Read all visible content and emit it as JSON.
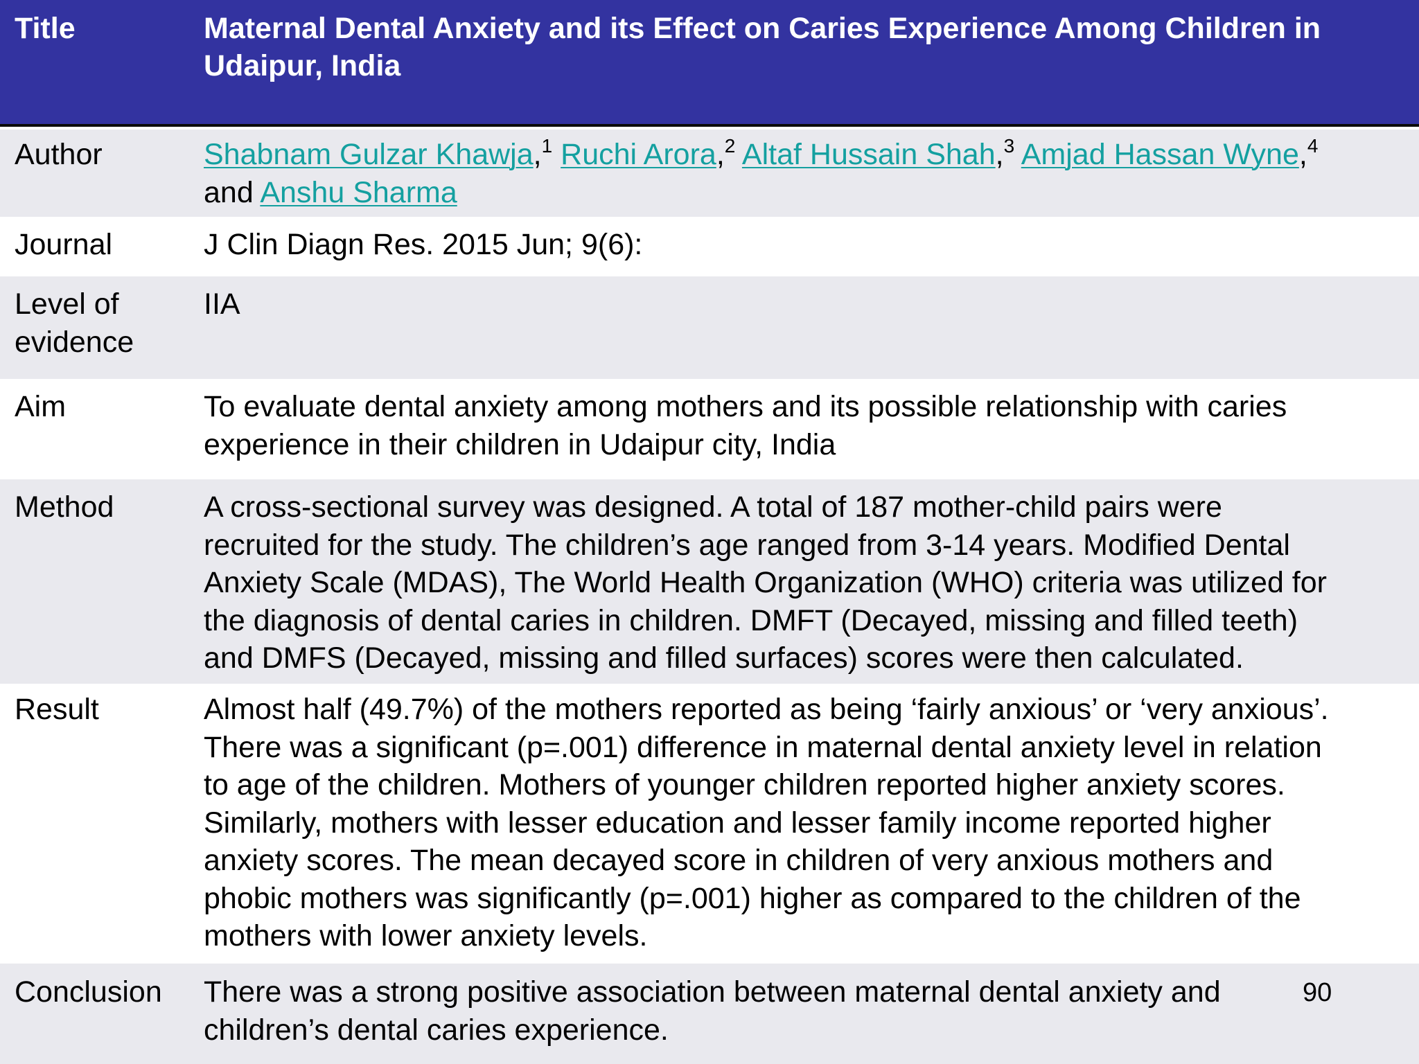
{
  "header": {
    "label": "Title",
    "line1": "Maternal Dental Anxiety and its Effect on Caries Experience Among Children in",
    "line2": "Udaipur, India"
  },
  "author": {
    "label": "Author",
    "names": [
      "Shabnam Gulzar Khawja",
      "Ruchi Arora",
      "Altaf Hussain Shah",
      "Amjad Hassan Wyne",
      "Anshu Sharma"
    ],
    "sups": [
      "1",
      "2",
      "3",
      "4"
    ],
    "comma": ",",
    "and": "and"
  },
  "journal": {
    "label": "Journal",
    "value": "J Clin Diagn Res. 2015 Jun; 9(6):"
  },
  "level": {
    "label_line1": "Level of",
    "label_line2": "evidence",
    "value": "IIA"
  },
  "aim": {
    "label": "Aim",
    "lines": [
      "To evaluate dental anxiety among mothers and its possible relationship with caries",
      "experience in their children in Udaipur city, India"
    ]
  },
  "method": {
    "label": "Method",
    "lines": [
      "A cross-sectional survey was designed. A total of 187 mother-child pairs were",
      "recruited for the study. The children’s age ranged from 3-14 years. Modified Dental",
      "Anxiety Scale (MDAS), The World Health Organization (WHO) criteria was utilized for",
      "the diagnosis of dental caries in children. DMFT (Decayed, missing and filled teeth)",
      "and DMFS (Decayed, missing and filled surfaces) scores were then calculated."
    ]
  },
  "result": {
    "label": "Result",
    "lines": [
      "Almost half (49.7%) of the mothers reported as being ‘fairly anxious’ or ‘very anxious’.",
      "There was a significant (p=.001) difference in maternal dental anxiety level in relation",
      "to age of the children. Mothers of younger children reported higher anxiety scores.",
      "Similarly, mothers with lesser education and lesser family income reported higher",
      "anxiety scores. The mean decayed score in children of very anxious mothers and",
      "phobic mothers was significantly (p=.001) higher as compared to the children of the",
      "mothers with lower anxiety levels."
    ]
  },
  "conclusion": {
    "label": "Conclusion",
    "lines": [
      "There was a strong positive association between maternal dental anxiety and",
      "children’s dental caries experience."
    ]
  },
  "page_number": "90"
}
